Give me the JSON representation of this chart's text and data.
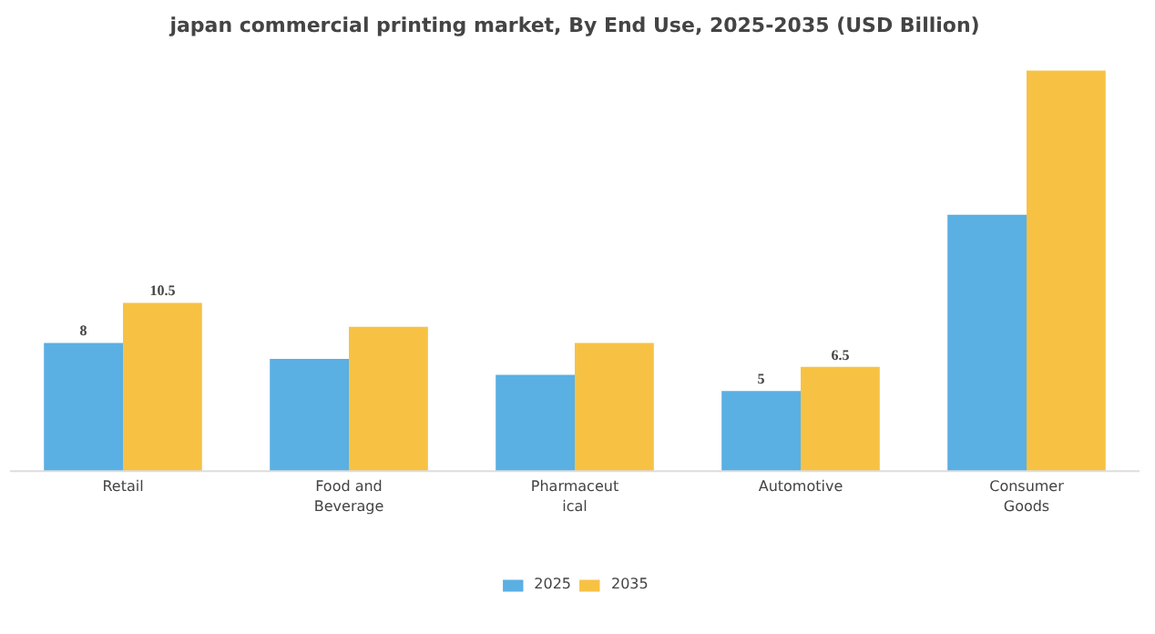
{
  "chart_data": {
    "type": "bar",
    "title": "japan commercial printing market, By End Use, 2025-2035 (USD Billion)",
    "categories": [
      "Retail",
      "Food and\nBeverage",
      "Pharmaceut\nical",
      "Automotive",
      "Consumer\nGoods"
    ],
    "series": [
      {
        "name": "2025",
        "color": "#5aafe3",
        "values": [
          8,
          7,
          6,
          5,
          16
        ],
        "value_labels": [
          "8",
          null,
          null,
          "5",
          null
        ]
      },
      {
        "name": "2035",
        "color": "#f7c244",
        "values": [
          10.5,
          9,
          8,
          6.5,
          25
        ],
        "value_labels": [
          "10.5",
          null,
          null,
          "6.5",
          null
        ]
      }
    ],
    "legend": "bottom"
  }
}
